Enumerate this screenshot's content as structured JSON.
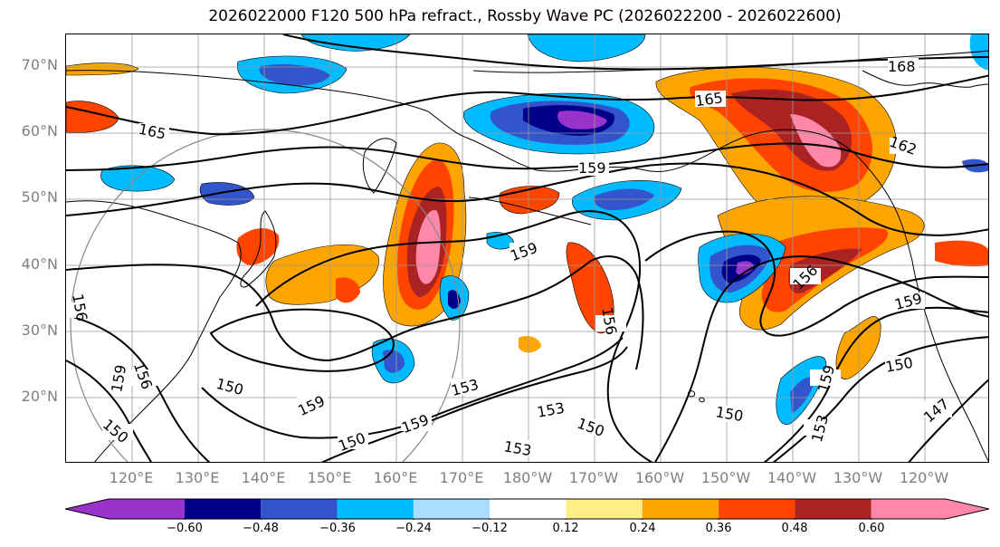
{
  "title": "2026022000 F120 500 hPa refract., Rossby Wave PC (2026022200 - 2026022600)",
  "lat_labels": [
    "70°N",
    "60°N",
    "50°N",
    "40°N",
    "30°N",
    "20°N"
  ],
  "lon_labels": [
    "120°E",
    "130°E",
    "140°E",
    "150°E",
    "160°E",
    "170°E",
    "180°W",
    "170°W",
    "160°W",
    "150°W",
    "140°W",
    "130°W",
    "120°W"
  ],
  "colorbar": {
    "tick_labels": [
      "−0.60",
      "−0.48",
      "−0.36",
      "−0.24",
      "−0.12",
      "0.12",
      "0.24",
      "0.36",
      "0.48",
      "0.60"
    ],
    "colors": [
      "#9933cc",
      "#000088",
      "#3355cc",
      "#00bbff",
      "#aaddff",
      "#ffffff",
      "#ffee88",
      "#ffa500",
      "#ff4400",
      "#aa2222",
      "#ff88aa"
    ]
  },
  "contour_labels": [
    "165",
    "168",
    "165",
    "162",
    "159",
    "159",
    "156",
    "159",
    "150",
    "159",
    "153",
    "153",
    "150",
    "150",
    "153",
    "150",
    "147",
    "159",
    "153",
    "156",
    "159",
    "156",
    "150",
    "150",
    "159",
    "156"
  ]
}
